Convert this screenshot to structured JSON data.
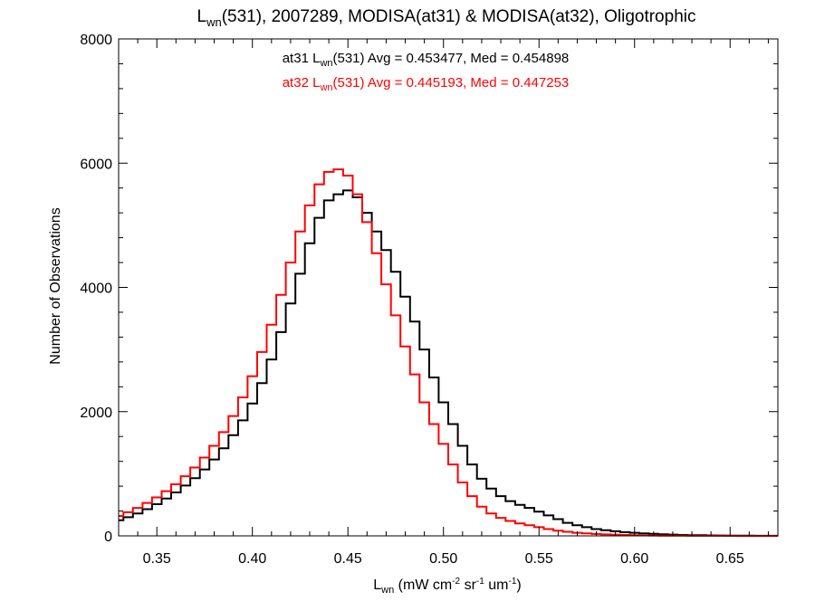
{
  "chart_data": {
    "type": "line",
    "title_parts": [
      "L",
      "wn",
      "(531), 2007289, MODISA(at31) & MODISA(at32), Oligotrophic"
    ],
    "xlabel_parts": [
      "L",
      "wn",
      " (mW cm",
      "-2",
      " sr",
      "-1",
      " um",
      "-1",
      ")"
    ],
    "ylabel": "Number of Observations",
    "xlim": [
      0.33,
      0.675
    ],
    "ylim": [
      0,
      8000
    ],
    "x_ticks": [
      0.35,
      0.4,
      0.45,
      0.5,
      0.55,
      0.6,
      0.65
    ],
    "x_tick_labels": [
      "0.35",
      "0.40",
      "0.45",
      "0.50",
      "0.55",
      "0.60",
      "0.65"
    ],
    "y_ticks": [
      0,
      2000,
      4000,
      6000,
      8000
    ],
    "y_tick_labels": [
      "0",
      "2000",
      "4000",
      "6000",
      "8000"
    ],
    "legend_position": "top-center",
    "series": [
      {
        "name": "at31",
        "color": "#000000",
        "legend_parts": [
          "at31 L",
          "wn",
          "(531) Avg = 0.453477, Med = 0.454898"
        ],
        "x": [
          0.33,
          0.335,
          0.34,
          0.345,
          0.35,
          0.355,
          0.36,
          0.365,
          0.37,
          0.375,
          0.38,
          0.385,
          0.39,
          0.395,
          0.4,
          0.405,
          0.41,
          0.415,
          0.42,
          0.425,
          0.43,
          0.435,
          0.44,
          0.445,
          0.45,
          0.455,
          0.46,
          0.465,
          0.47,
          0.475,
          0.48,
          0.485,
          0.49,
          0.495,
          0.5,
          0.505,
          0.51,
          0.515,
          0.52,
          0.525,
          0.53,
          0.535,
          0.54,
          0.545,
          0.55,
          0.555,
          0.56,
          0.565,
          0.57,
          0.575,
          0.58,
          0.585,
          0.59,
          0.595,
          0.6,
          0.605,
          0.61,
          0.615,
          0.62,
          0.625,
          0.63,
          0.635,
          0.64,
          0.645,
          0.65,
          0.655,
          0.66,
          0.665,
          0.67,
          0.675
        ],
        "values": [
          250,
          300,
          360,
          430,
          510,
          600,
          700,
          810,
          930,
          1070,
          1230,
          1410,
          1620,
          1860,
          2130,
          2460,
          2840,
          3280,
          3740,
          4220,
          4710,
          5120,
          5400,
          5500,
          5560,
          5450,
          5200,
          4900,
          4600,
          4250,
          3850,
          3450,
          3000,
          2550,
          2150,
          1800,
          1450,
          1150,
          920,
          760,
          640,
          560,
          500,
          450,
          390,
          330,
          270,
          210,
          170,
          140,
          110,
          90,
          75,
          60,
          50,
          40,
          32,
          25,
          20,
          15,
          12,
          10,
          8,
          6,
          5,
          4,
          3,
          2,
          2,
          1
        ]
      },
      {
        "name": "at32",
        "color": "#ff0000",
        "legend_parts": [
          "at32 L",
          "wn",
          "(531) Avg = 0.445193, Med = 0.447253"
        ],
        "x": [
          0.33,
          0.335,
          0.34,
          0.345,
          0.35,
          0.355,
          0.36,
          0.365,
          0.37,
          0.375,
          0.38,
          0.385,
          0.39,
          0.395,
          0.4,
          0.405,
          0.41,
          0.415,
          0.42,
          0.425,
          0.43,
          0.435,
          0.44,
          0.445,
          0.45,
          0.455,
          0.46,
          0.465,
          0.47,
          0.475,
          0.48,
          0.485,
          0.49,
          0.495,
          0.5,
          0.505,
          0.51,
          0.515,
          0.52,
          0.525,
          0.53,
          0.535,
          0.54,
          0.545,
          0.55,
          0.555,
          0.56,
          0.565,
          0.57,
          0.575,
          0.58,
          0.585,
          0.59,
          0.595,
          0.6,
          0.605,
          0.61,
          0.615,
          0.62,
          0.625,
          0.63,
          0.635,
          0.64,
          0.645,
          0.65,
          0.655,
          0.66,
          0.665,
          0.67,
          0.675
        ],
        "values": [
          320,
          380,
          450,
          530,
          620,
          720,
          830,
          960,
          1100,
          1260,
          1450,
          1670,
          1930,
          2230,
          2570,
          2960,
          3400,
          3880,
          4400,
          4900,
          5320,
          5660,
          5860,
          5900,
          5800,
          5500,
          5050,
          4550,
          4050,
          3550,
          3050,
          2600,
          2150,
          1800,
          1480,
          1150,
          860,
          640,
          470,
          360,
          290,
          240,
          200,
          170,
          140,
          110,
          85,
          65,
          50,
          40,
          30,
          24,
          18,
          14,
          10,
          8,
          6,
          5,
          4,
          3,
          2,
          2,
          1,
          1,
          1,
          0,
          0,
          0,
          0,
          0
        ]
      }
    ]
  }
}
